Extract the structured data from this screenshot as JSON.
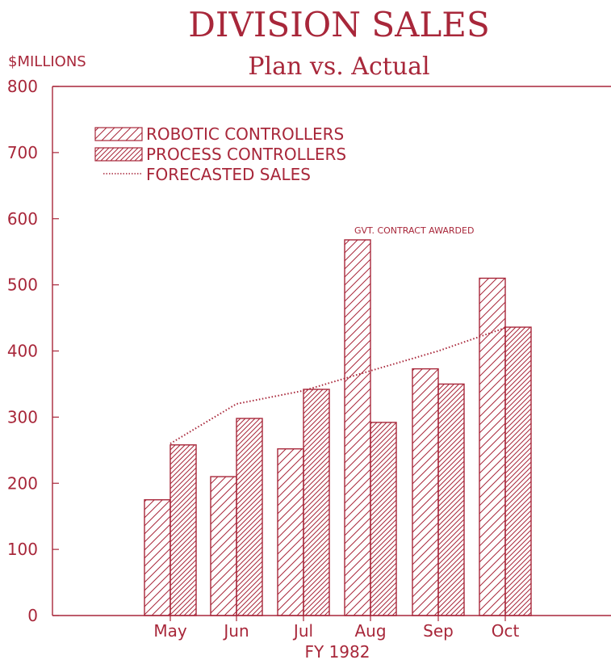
{
  "colors": {
    "ink": "#a8273a",
    "background": "#ffffff"
  },
  "chart_data": {
    "type": "bar",
    "title": "DIVISION SALES",
    "subtitle": "Plan vs. Actual",
    "ylabel": "$MILLIONS",
    "xlabel": "FY 1982",
    "ylim": [
      0,
      800
    ],
    "yticks": [
      "0",
      "100",
      "200",
      "300",
      "400",
      "500",
      "600",
      "700",
      "800"
    ],
    "categories": [
      "May",
      "Jun",
      "Jul",
      "Aug",
      "Sep",
      "Oct"
    ],
    "series": [
      {
        "name": "ROBOTIC CONTROLLERS",
        "kind": "bar",
        "hatch": "single-diagonal",
        "values": [
          175,
          210,
          252,
          568,
          373,
          510
        ]
      },
      {
        "name": "PROCESS CONTROLLERS",
        "kind": "bar",
        "hatch": "dense-diagonal",
        "values": [
          258,
          298,
          342,
          292,
          350,
          436
        ]
      },
      {
        "name": "FORECASTED SALES",
        "kind": "line",
        "style": "dotted",
        "values": [
          260,
          320,
          340,
          370,
          400,
          435
        ]
      }
    ],
    "annotations": [
      {
        "text": "GVT. CONTRACT AWARDED",
        "category": "Aug",
        "series": 0
      }
    ],
    "legend_position": "top-left",
    "grid": false
  }
}
